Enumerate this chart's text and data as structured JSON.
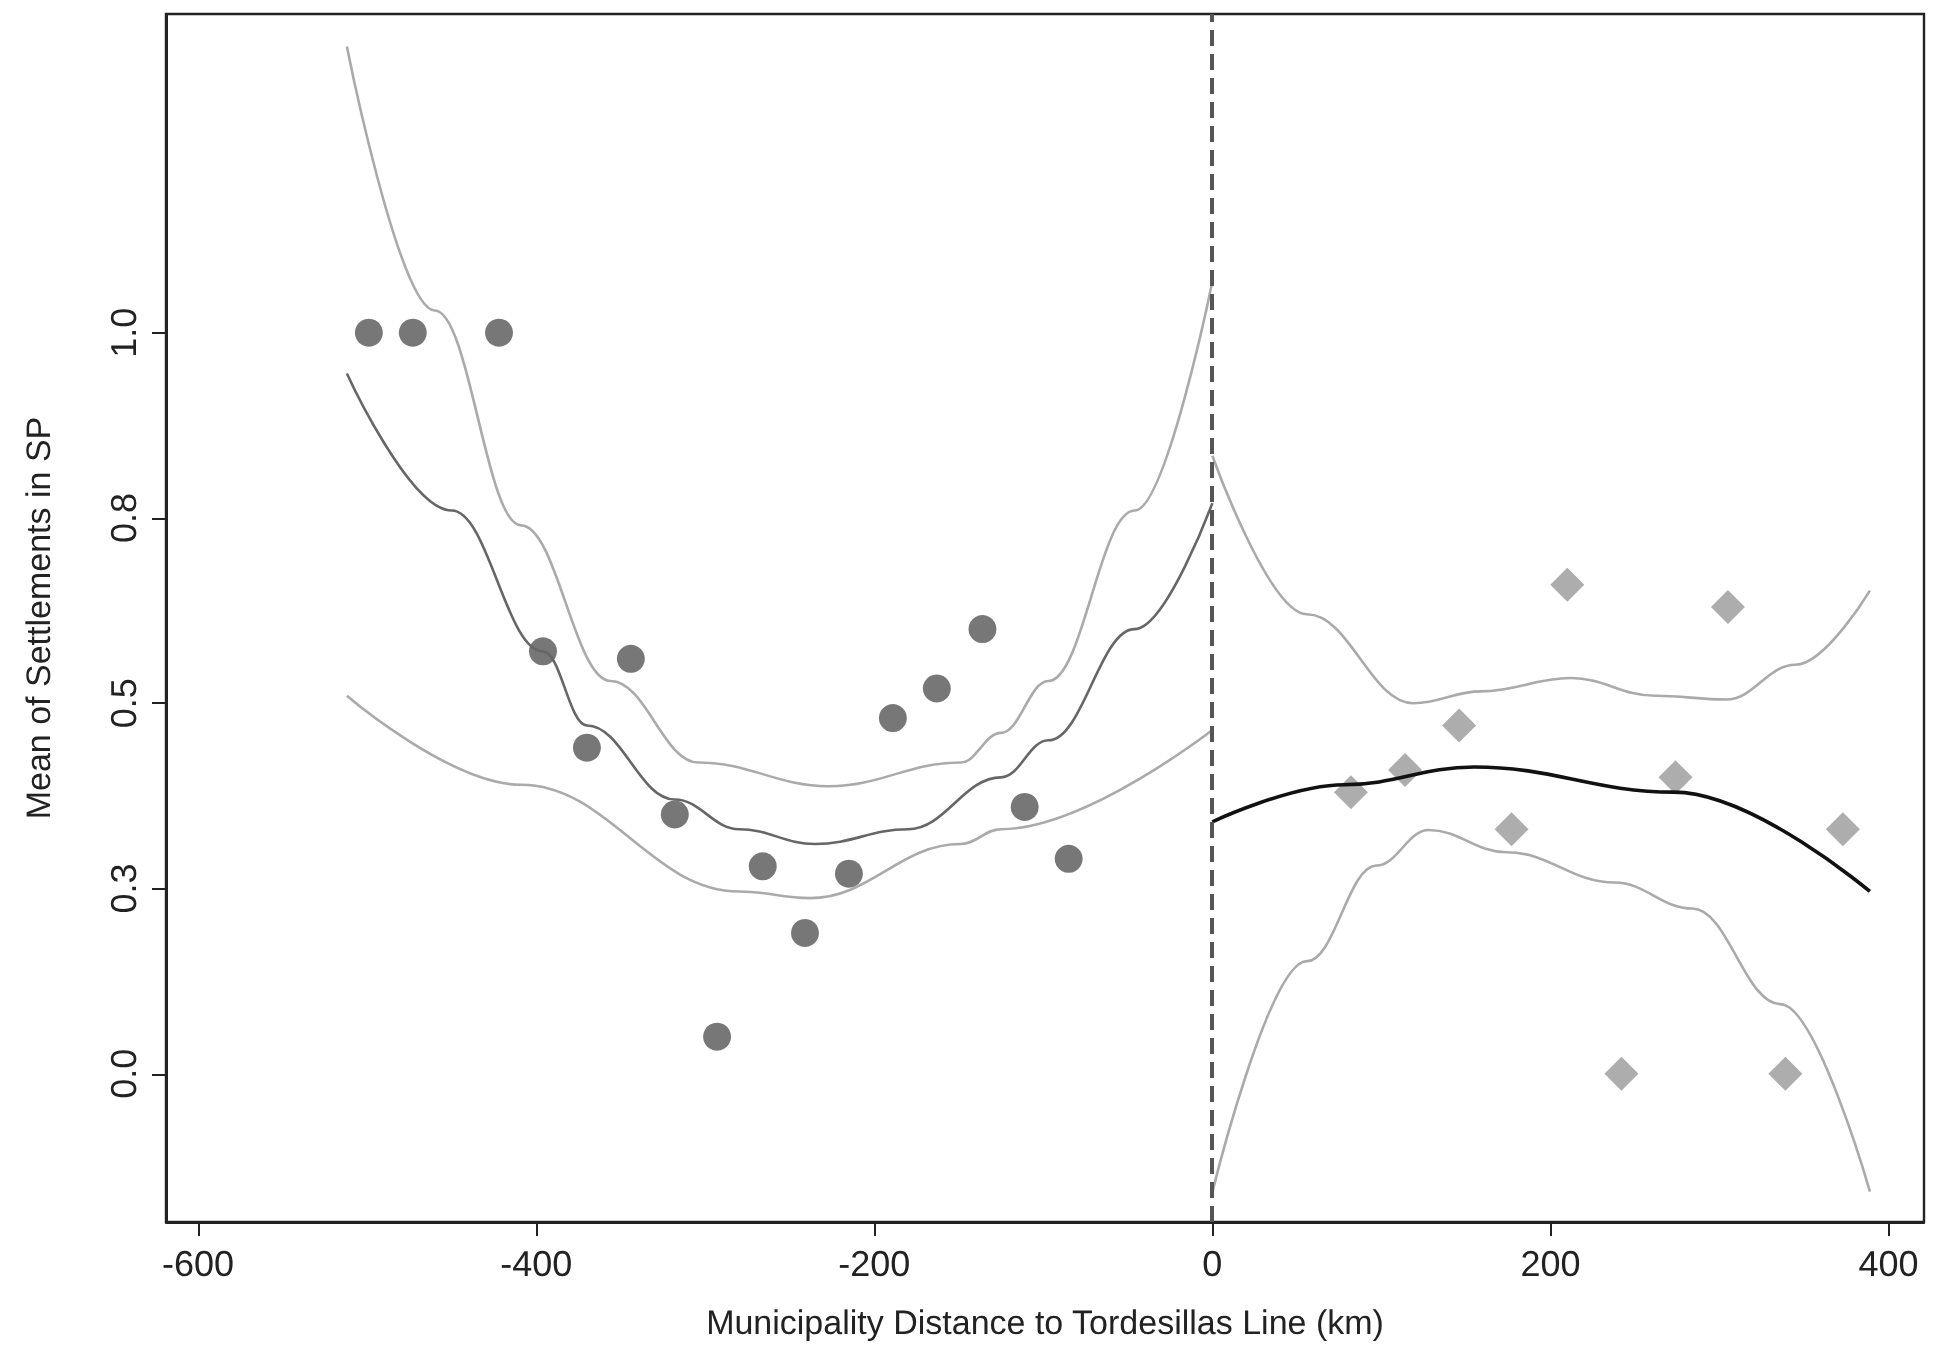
{
  "chart_data": {
    "type": "scatter",
    "xlabel": "Municipality Distance to Tordesillas Line (km)",
    "ylabel": "Mean of Settlements in SP",
    "xlim": [
      -619,
      421
    ],
    "ylim": [
      -0.2,
      1.43
    ],
    "xticks": [
      -600,
      -400,
      -200,
      0,
      200,
      400
    ],
    "yticks": [
      {
        "value": 0,
        "label": "0.0"
      },
      {
        "value": 0.25,
        "label": "0.3"
      },
      {
        "value": 0.5,
        "label": "0.5"
      },
      {
        "value": 0.75,
        "label": "0.8"
      },
      {
        "value": 1,
        "label": "1.0"
      }
    ],
    "grid": false,
    "ref_lines": [
      {
        "axis": "x",
        "value": 0,
        "label": null,
        "color": "#555555",
        "line_style": "dashed"
      }
    ],
    "series": [
      {
        "marker": "circle",
        "color": "#555555",
        "x": [
          -499,
          -473,
          -422,
          -396,
          -370,
          -344,
          -318,
          -293,
          -266,
          -241,
          -215,
          -189,
          -163,
          -136,
          -111,
          -85
        ],
        "values": [
          1.0,
          1.0,
          1.0,
          0.57,
          0.44,
          0.56,
          0.35,
          0.05,
          0.28,
          0.19,
          0.27,
          0.48,
          0.52,
          0.6,
          0.36,
          0.29
        ]
      },
      {
        "marker": "diamond",
        "color": "#999999",
        "x": [
          82,
          114,
          146,
          177,
          210,
          242,
          274,
          305,
          339,
          373
        ],
        "values": [
          0.38,
          0.41,
          0.47,
          0.33,
          0.66,
          0,
          0.4,
          0.63,
          0,
          0.33
        ]
      },
      {
        "type": "line",
        "marker": "none",
        "color": "#666666",
        "x": [
          -512,
          -450,
          -396,
          -370,
          -318,
          -280,
          -235,
          -180,
          -125,
          -97,
          -46,
          0
        ],
        "values": [
          0.945,
          0.76,
          0.57,
          0.47,
          0.37,
          0.33,
          0.31,
          0.33,
          0.4,
          0.45,
          0.6,
          0.77
        ]
      },
      {
        "type": "line",
        "marker": "none",
        "color": "#aaaaaa",
        "x": [
          -512,
          -460,
          -409,
          -356,
          -304,
          -227,
          -149,
          -125,
          -97,
          -46,
          0
        ],
        "values": [
          1.386,
          1.03,
          0.74,
          0.53,
          0.42,
          0.388,
          0.42,
          0.46,
          0.53,
          0.76,
          1.069
        ]
      },
      {
        "type": "line",
        "marker": "none",
        "color": "#aaaaaa",
        "x": [
          -512,
          -409,
          -280,
          -238,
          -149,
          -125,
          0
        ],
        "values": [
          0.51,
          0.39,
          0.246,
          0.237,
          0.31,
          0.33,
          0.464
        ]
      },
      {
        "type": "line",
        "marker": "none",
        "color": "#111111",
        "x": [
          0,
          78,
          155,
          273,
          389
        ],
        "values": [
          0.34,
          0.39,
          0.414,
          0.38,
          0.246
        ]
      },
      {
        "type": "line",
        "marker": "none",
        "color": "#aaaaaa",
        "x": [
          0,
          56,
          119,
          159,
          212,
          262,
          304,
          345,
          389
        ],
        "values": [
          0.834,
          0.62,
          0.5,
          0.516,
          0.534,
          0.51,
          0.505,
          0.552,
          0.652
        ]
      },
      {
        "type": "line",
        "marker": "none",
        "color": "#aaaaaa",
        "x": [
          0,
          56,
          97,
          128,
          174,
          238,
          284,
          336,
          389
        ],
        "values": [
          -0.16,
          0.152,
          0.281,
          0.329,
          0.299,
          0.258,
          0.223,
          0.094,
          -0.159
        ]
      }
    ]
  }
}
